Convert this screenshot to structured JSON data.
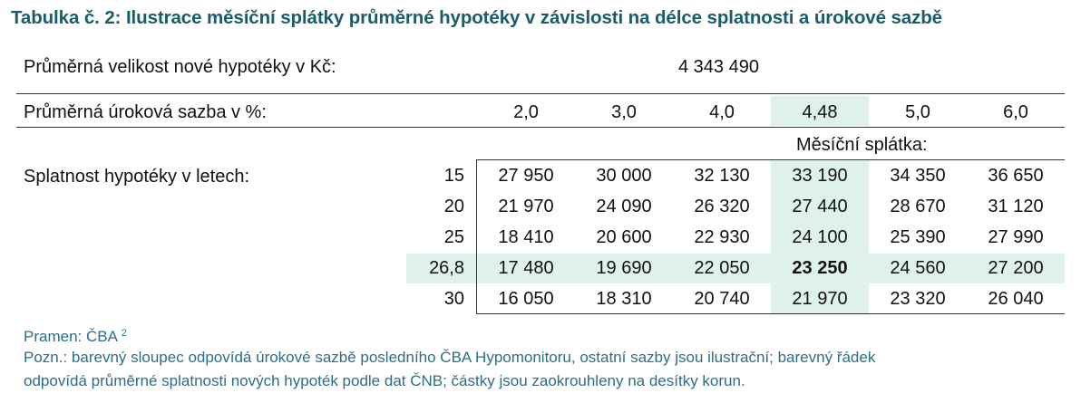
{
  "title": "Tabulka č. 2: Ilustrace měsíční splátky průměrné hypotéky v závislosti na délce splatnosti a úrokové sazbě",
  "loan": {
    "label": "Průměrná velikost nové hypotéky v Kč:",
    "value": "4 343 490"
  },
  "rates": {
    "label": "Průměrná úroková sazba v %:",
    "values": [
      "2,0",
      "3,0",
      "4,0",
      "4,48",
      "5,0",
      "6,0"
    ],
    "highlight_index": 3
  },
  "payment_header": "Měsíční splátka:",
  "term_label": "Splatnost hypotéky v letech:",
  "rows": [
    {
      "term": "15",
      "values": [
        "27 950",
        "30 000",
        "32 130",
        "33 190",
        "34 350",
        "36 650"
      ]
    },
    {
      "term": "20",
      "values": [
        "21 970",
        "24 090",
        "26 320",
        "27 440",
        "28 670",
        "31 120"
      ]
    },
    {
      "term": "25",
      "values": [
        "18 410",
        "20 600",
        "22 930",
        "24 100",
        "25 390",
        "27 990"
      ]
    },
    {
      "term": "26,8",
      "values": [
        "17 480",
        "19 690",
        "22 050",
        "23 250",
        "24 560",
        "27 200"
      ],
      "highlight": true
    },
    {
      "term": "30",
      "values": [
        "16 050",
        "18 310",
        "20 740",
        "21 970",
        "23 320",
        "26 040"
      ]
    }
  ],
  "source": {
    "label": "Pramen: ČBA",
    "footnote": "2"
  },
  "note_line1": "Pozn.: barevný sloupec odpovídá úrokové sazbě posledního ČBA Hypomonitoru, ostatní sazby jsou ilustrační; barevný řádek",
  "note_line2": "odpovídá průměrné splatnosti nových hypoték podle dat ČNB; částky jsou zaokrouhleny na desítky korun.",
  "colors": {
    "title": "#1b5c6b",
    "highlight": "#dff2ea",
    "note": "#2a6f86"
  }
}
